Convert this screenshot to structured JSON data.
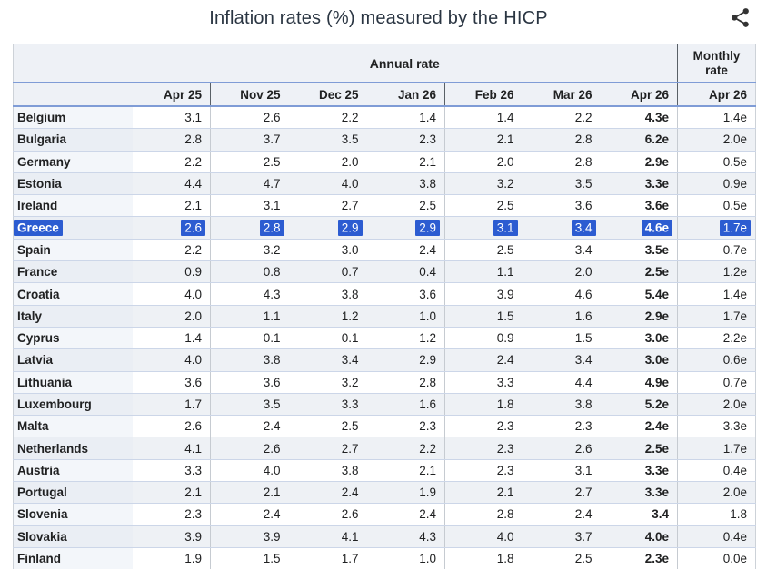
{
  "title": "Inflation rates (%) measured by the HICP",
  "share": {
    "icon": "share-icon"
  },
  "table": {
    "selected_country": "Greece",
    "colors": {
      "selection_highlight": "#2c5cd1",
      "header_rule_blue": "#7f9cd6",
      "row_rule": "#ccd6e8",
      "header_bg": "#eef1f6",
      "stripe_bg": "#eef1f5"
    }
  },
  "chart_data": {
    "type": "table",
    "title": "Inflation rates (%) measured by the HICP",
    "column_groups": [
      {
        "label": "Annual rate",
        "span": 7
      },
      {
        "label": "Monthly rate",
        "span": 1
      }
    ],
    "columns": [
      "Apr 25",
      "Nov 25",
      "Dec 25",
      "Jan 26",
      "Feb 26",
      "Mar 26",
      "Apr 26",
      "Apr 26"
    ],
    "rows": [
      {
        "label": "Belgium",
        "values": [
          "3.1",
          "2.6",
          "2.2",
          "1.4",
          "1.4",
          "2.2",
          "4.3e",
          "1.4e"
        ]
      },
      {
        "label": "Bulgaria",
        "values": [
          "2.8",
          "3.7",
          "3.5",
          "2.3",
          "2.1",
          "2.8",
          "6.2e",
          "2.0e"
        ]
      },
      {
        "label": "Germany",
        "values": [
          "2.2",
          "2.5",
          "2.0",
          "2.1",
          "2.0",
          "2.8",
          "2.9e",
          "0.5e"
        ]
      },
      {
        "label": "Estonia",
        "values": [
          "4.4",
          "4.7",
          "4.0",
          "3.8",
          "3.2",
          "3.5",
          "3.3e",
          "0.9e"
        ]
      },
      {
        "label": "Ireland",
        "values": [
          "2.1",
          "3.1",
          "2.7",
          "2.5",
          "2.5",
          "3.6",
          "3.6e",
          "0.5e"
        ]
      },
      {
        "label": "Greece",
        "values": [
          "2.6",
          "2.8",
          "2.9",
          "2.9",
          "3.1",
          "3.4",
          "4.6e",
          "1.7e"
        ]
      },
      {
        "label": "Spain",
        "values": [
          "2.2",
          "3.2",
          "3.0",
          "2.4",
          "2.5",
          "3.4",
          "3.5e",
          "0.7e"
        ]
      },
      {
        "label": "France",
        "values": [
          "0.9",
          "0.8",
          "0.7",
          "0.4",
          "1.1",
          "2.0",
          "2.5e",
          "1.2e"
        ]
      },
      {
        "label": "Croatia",
        "values": [
          "4.0",
          "4.3",
          "3.8",
          "3.6",
          "3.9",
          "4.6",
          "5.4e",
          "1.4e"
        ]
      },
      {
        "label": "Italy",
        "values": [
          "2.0",
          "1.1",
          "1.2",
          "1.0",
          "1.5",
          "1.6",
          "2.9e",
          "1.7e"
        ]
      },
      {
        "label": "Cyprus",
        "values": [
          "1.4",
          "0.1",
          "0.1",
          "1.2",
          "0.9",
          "1.5",
          "3.0e",
          "2.2e"
        ]
      },
      {
        "label": "Latvia",
        "values": [
          "4.0",
          "3.8",
          "3.4",
          "2.9",
          "2.4",
          "3.4",
          "3.0e",
          "0.6e"
        ]
      },
      {
        "label": "Lithuania",
        "values": [
          "3.6",
          "3.6",
          "3.2",
          "2.8",
          "3.3",
          "4.4",
          "4.9e",
          "0.7e"
        ]
      },
      {
        "label": "Luxembourg",
        "values": [
          "1.7",
          "3.5",
          "3.3",
          "1.6",
          "1.8",
          "3.8",
          "5.2e",
          "2.0e"
        ]
      },
      {
        "label": "Malta",
        "values": [
          "2.6",
          "2.4",
          "2.5",
          "2.3",
          "2.3",
          "2.3",
          "2.4e",
          "3.3e"
        ]
      },
      {
        "label": "Netherlands",
        "values": [
          "4.1",
          "2.6",
          "2.7",
          "2.2",
          "2.3",
          "2.6",
          "2.5e",
          "1.7e"
        ]
      },
      {
        "label": "Austria",
        "values": [
          "3.3",
          "4.0",
          "3.8",
          "2.1",
          "2.3",
          "3.1",
          "3.3e",
          "0.4e"
        ]
      },
      {
        "label": "Portugal",
        "values": [
          "2.1",
          "2.1",
          "2.4",
          "1.9",
          "2.1",
          "2.7",
          "3.3e",
          "2.0e"
        ]
      },
      {
        "label": "Slovenia",
        "values": [
          "2.3",
          "2.4",
          "2.6",
          "2.4",
          "2.8",
          "2.4",
          "3.4",
          "1.8"
        ]
      },
      {
        "label": "Slovakia",
        "values": [
          "3.9",
          "3.9",
          "4.1",
          "4.3",
          "4.0",
          "3.7",
          "4.0e",
          "0.4e"
        ]
      },
      {
        "label": "Finland",
        "values": [
          "1.9",
          "1.5",
          "1.7",
          "1.0",
          "1.8",
          "2.5",
          "2.3e",
          "0.0e"
        ]
      }
    ]
  }
}
